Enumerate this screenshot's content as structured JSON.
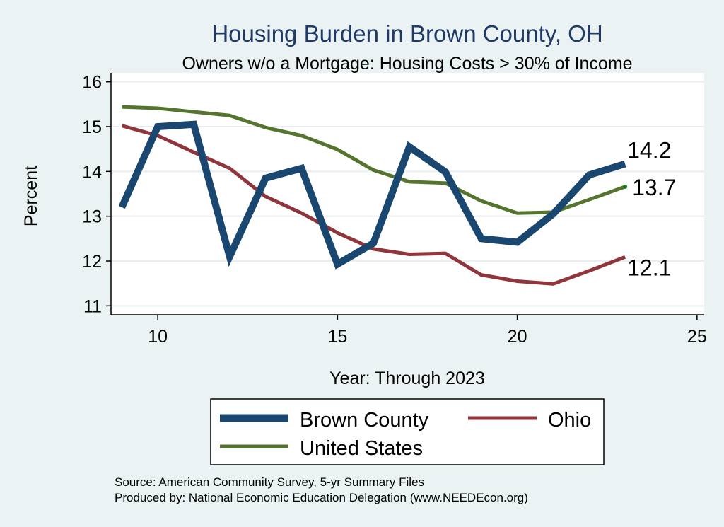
{
  "colors": {
    "background": "#eaf2f3",
    "plot_background": "#ffffff",
    "brown_county": "#1a476f",
    "ohio": "#90353b",
    "united_states": "#55752f",
    "title": "#1f3a66"
  },
  "chart_data": {
    "type": "line",
    "title": "Housing Burden in Brown County, OH",
    "subtitle": "Owners w/o a Mortgage: Housing Costs > 30% of Income",
    "xlabel": "Year: Through 2023",
    "ylabel": "Percent",
    "xlim": [
      8.7,
      25.2
    ],
    "ylim": [
      10.8,
      16.2
    ],
    "x_ticks": [
      10,
      15,
      20,
      25
    ],
    "y_ticks": [
      11,
      12,
      13,
      14,
      15,
      16
    ],
    "grid": true,
    "legend_position": "bottom",
    "x": [
      9,
      10,
      11,
      12,
      13,
      14,
      15,
      16,
      17,
      18,
      19,
      20,
      21,
      22,
      23
    ],
    "series": [
      {
        "name": "Brown County",
        "color": "#1a476f",
        "values": [
          13.2,
          15.0,
          15.05,
          12.1,
          13.85,
          14.07,
          11.93,
          12.4,
          14.55,
          13.99,
          12.5,
          12.42,
          13.05,
          13.92,
          14.17
        ],
        "end_label": "14.2"
      },
      {
        "name": "Ohio",
        "color": "#90353b",
        "values": [
          15.02,
          14.8,
          14.43,
          14.07,
          13.44,
          13.07,
          12.63,
          12.27,
          12.15,
          12.17,
          11.69,
          11.55,
          11.49,
          11.78,
          12.09
        ],
        "end_label": "12.1"
      },
      {
        "name": "United States",
        "color": "#55752f",
        "values": [
          15.44,
          15.41,
          15.33,
          15.25,
          14.98,
          14.8,
          14.49,
          14.03,
          13.77,
          13.74,
          13.34,
          13.07,
          13.09,
          13.37,
          13.66
        ],
        "end_label": "13.7"
      }
    ]
  },
  "legend": {
    "items": [
      "Brown County",
      "Ohio",
      "United States"
    ]
  },
  "source": {
    "line1": "Source: American Community Survey, 5-yr Summary Files",
    "line2": "Produced by: National Economic Education Delegation (www.NEEDEcon.org)"
  }
}
